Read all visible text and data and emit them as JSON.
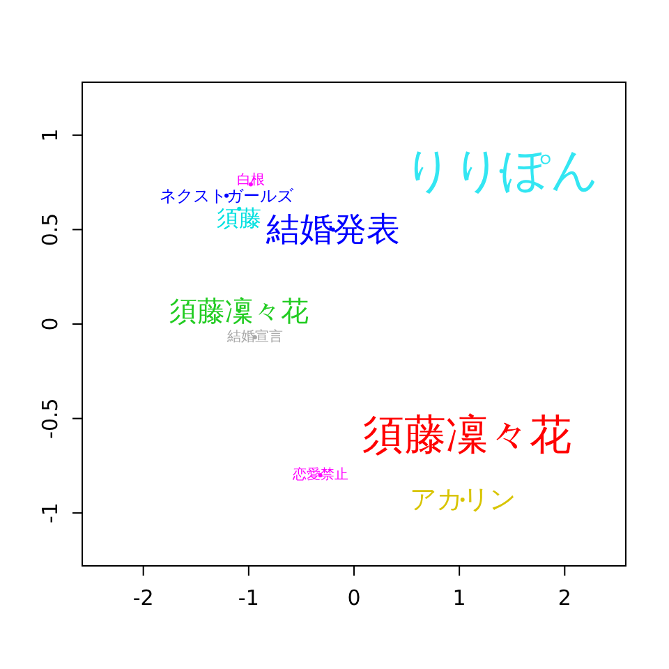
{
  "chart_data": {
    "type": "scatter",
    "marker": "circle",
    "xlim": [
      -2.58,
      2.58
    ],
    "ylim": [
      -1.28,
      1.28
    ],
    "xticks": [
      -2,
      -1,
      0,
      1,
      2
    ],
    "yticks": [
      -1,
      -0.5,
      0,
      0.5,
      1
    ],
    "series": [
      {
        "name": "りりぽん",
        "color": "#33e6f2",
        "x": [
          1.4
        ],
        "values": [
          0.81
        ]
      },
      {
        "name": "結婚発表",
        "color": "#0000ff",
        "x": [
          -0.2
        ],
        "values": [
          0.5
        ]
      },
      {
        "name": "須藤",
        "color": "#00e0e0",
        "x": [
          -1.09
        ],
        "values": [
          0.61
        ]
      },
      {
        "name": "ネクストガールズ",
        "color": "#0000ff",
        "x": [
          -1.21
        ],
        "values": [
          0.68
        ]
      },
      {
        "name": "白根",
        "color": "#ff00ff",
        "x": [
          -0.98
        ],
        "values": [
          0.74
        ]
      },
      {
        "name": "須藤凜々花",
        "color": "#22cc22",
        "x": [
          -1.09
        ],
        "values": [
          0.07
        ]
      },
      {
        "name": "結婚宣言",
        "color": "#a8a8a8",
        "x": [
          -0.94
        ],
        "values": [
          -0.07
        ]
      },
      {
        "name": "須藤凜々花",
        "color": "#ff0000",
        "x": [
          1.07
        ],
        "values": [
          -0.59
        ]
      },
      {
        "name": "恋愛禁止",
        "color": "#ff00ff",
        "x": [
          -0.32
        ],
        "values": [
          -0.8
        ]
      },
      {
        "name": "アカリン",
        "color": "#d8c400",
        "x": [
          1.03
        ],
        "values": [
          -0.93
        ]
      }
    ]
  }
}
